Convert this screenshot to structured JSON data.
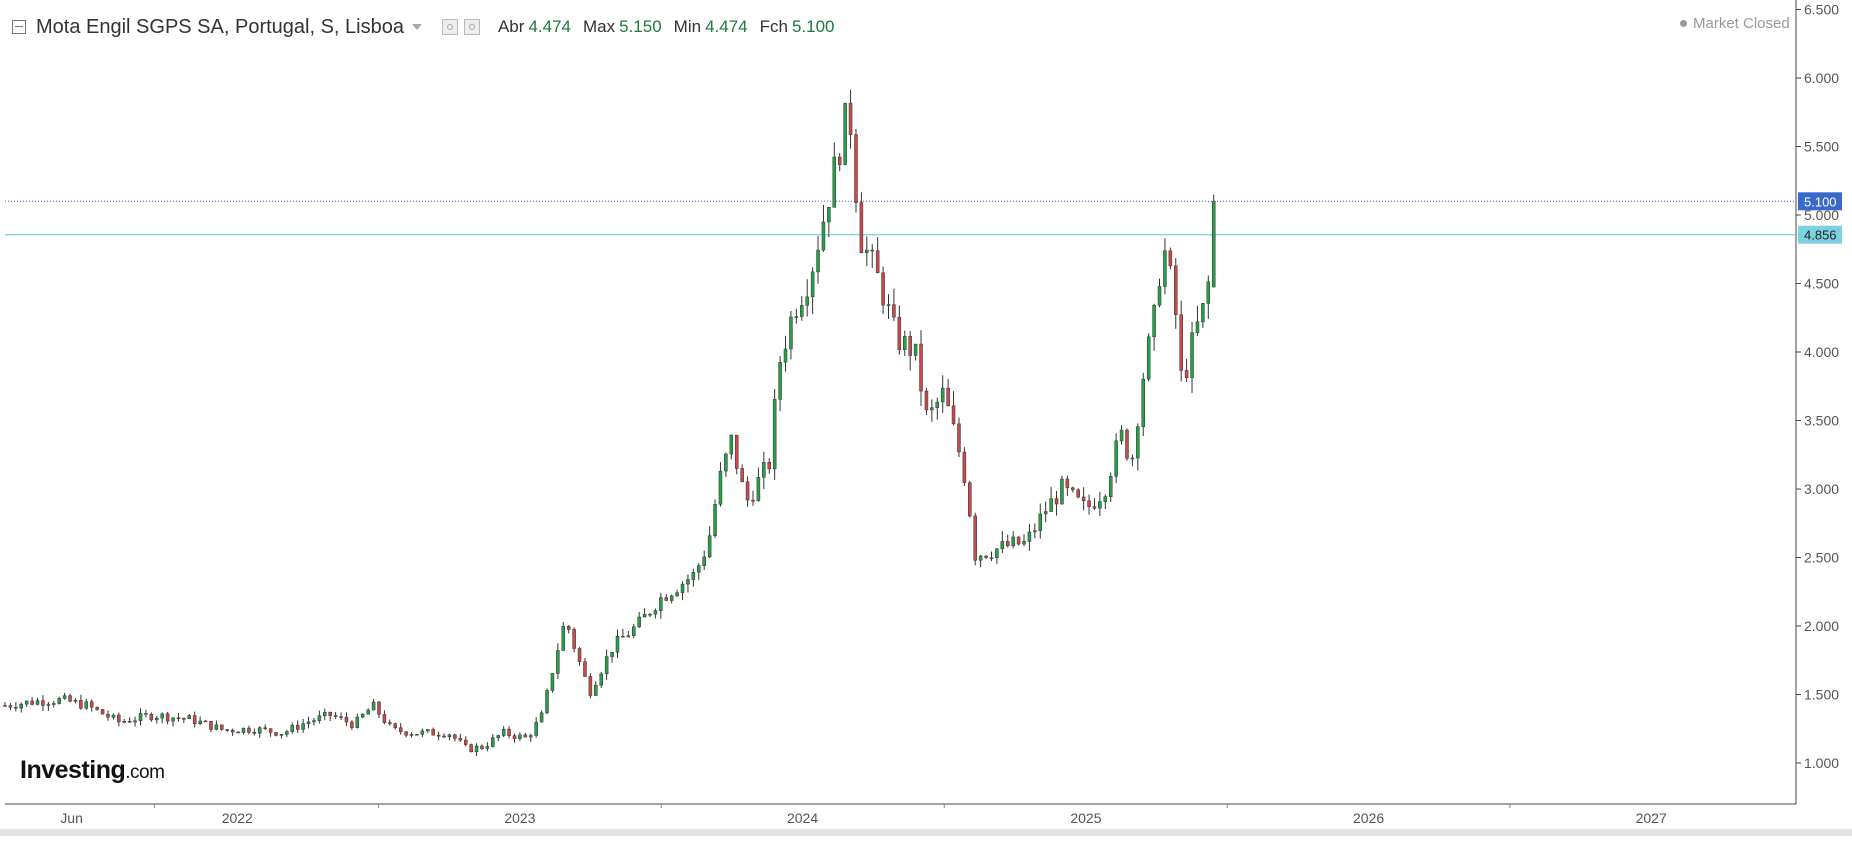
{
  "header": {
    "title": "Mota Engil SGPS SA, Portugal, S, Lisboa",
    "ohlc": [
      {
        "label": "Abr",
        "value": "4.474"
      },
      {
        "label": "Max",
        "value": "5.150"
      },
      {
        "label": "Min",
        "value": "4.474"
      },
      {
        "label": "Fch",
        "value": "5.100"
      }
    ]
  },
  "status": {
    "label": "Market Closed"
  },
  "logo": {
    "main": "Investing",
    "suffix": ".com"
  },
  "colors": {
    "up": "#26a046",
    "down": "#c84a4a",
    "price_line": "#3a6ac8",
    "level_line": "#7dd2e2",
    "grid": "#e8e8e8",
    "axis_text": "#555555"
  },
  "chart_data": {
    "type": "candlestick",
    "ylim": [
      0.75,
      6.5
    ],
    "y_ticks": [
      "1.000",
      "1.500",
      "2.000",
      "2.500",
      "3.000",
      "3.500",
      "4.000",
      "4.500",
      "5.000",
      "5.500",
      "6.000",
      "6.500"
    ],
    "x_ticks": [
      {
        "label": "Jun",
        "date": "2021-06-01"
      },
      {
        "label": "2022",
        "date": "2022-01-01"
      },
      {
        "label": "2023",
        "date": "2023-01-01"
      },
      {
        "label": "2024",
        "date": "2024-01-01"
      },
      {
        "label": "2025",
        "date": "2025-01-01"
      },
      {
        "label": "2026",
        "date": "2026-01-01"
      },
      {
        "label": "2027",
        "date": "2027-01-01"
      }
    ],
    "xlim": [
      "2021-03-07",
      "2027-07-07"
    ],
    "current_price": {
      "label": "5.100",
      "value": 5.1
    },
    "horizontal_level": {
      "label": "4.856",
      "value": 4.856
    },
    "key_points": [
      [
        "2021-03-07",
        1.42
      ],
      [
        "2021-04-15",
        1.45
      ],
      [
        "2021-05-20",
        1.46
      ],
      [
        "2021-06-20",
        1.42
      ],
      [
        "2021-08-01",
        1.3
      ],
      [
        "2021-09-15",
        1.35
      ],
      [
        "2021-11-01",
        1.32
      ],
      [
        "2021-12-15",
        1.24
      ],
      [
        "2022-01-20",
        1.25
      ],
      [
        "2022-03-01",
        1.22
      ],
      [
        "2022-04-01",
        1.3
      ],
      [
        "2022-05-01",
        1.35
      ],
      [
        "2022-06-01",
        1.28
      ],
      [
        "2022-06-25",
        1.42
      ],
      [
        "2022-07-20",
        1.24
      ],
      [
        "2022-08-20",
        1.22
      ],
      [
        "2022-10-01",
        1.22
      ],
      [
        "2022-10-25",
        1.1
      ],
      [
        "2022-11-15",
        1.12
      ],
      [
        "2022-12-10",
        1.22
      ],
      [
        "2023-01-10",
        1.18
      ],
      [
        "2023-01-30",
        1.35
      ],
      [
        "2023-02-15",
        1.75
      ],
      [
        "2023-03-01",
        2.05
      ],
      [
        "2023-03-15",
        1.8
      ],
      [
        "2023-04-01",
        1.52
      ],
      [
        "2023-05-01",
        1.85
      ],
      [
        "2023-06-01",
        2.0
      ],
      [
        "2023-07-01",
        2.2
      ],
      [
        "2023-08-15",
        2.38
      ],
      [
        "2023-09-01",
        2.6
      ],
      [
        "2023-09-15",
        3.05
      ],
      [
        "2023-10-01",
        3.35
      ],
      [
        "2023-10-20",
        2.9
      ],
      [
        "2023-11-20",
        3.2
      ],
      [
        "2023-12-01",
        3.9
      ],
      [
        "2023-12-20",
        4.3
      ],
      [
        "2024-01-10",
        4.55
      ],
      [
        "2024-01-25",
        4.9
      ],
      [
        "2024-02-10",
        5.3
      ],
      [
        "2024-03-01",
        5.8
      ],
      [
        "2024-03-15",
        4.85
      ],
      [
        "2024-04-10",
        4.5
      ],
      [
        "2024-05-01",
        4.1
      ],
      [
        "2024-05-25",
        4.0
      ],
      [
        "2024-06-10",
        3.5
      ],
      [
        "2024-07-01",
        3.7
      ],
      [
        "2024-07-20",
        3.3
      ],
      [
        "2024-08-01",
        3.0
      ],
      [
        "2024-08-10",
        2.52
      ],
      [
        "2024-09-01",
        2.55
      ],
      [
        "2024-10-01",
        2.6
      ],
      [
        "2024-10-15",
        2.6
      ],
      [
        "2024-11-10",
        2.85
      ],
      [
        "2024-12-01",
        3.0
      ],
      [
        "2025-01-01",
        2.85
      ],
      [
        "2025-01-25",
        3.0
      ],
      [
        "2025-02-15",
        3.4
      ],
      [
        "2025-03-01",
        3.2
      ],
      [
        "2025-03-15",
        3.8
      ],
      [
        "2025-04-01",
        4.3
      ],
      [
        "2025-04-10",
        4.8
      ],
      [
        "2025-04-25",
        4.4
      ],
      [
        "2025-05-05",
        3.75
      ],
      [
        "2025-05-20",
        4.1
      ],
      [
        "2025-06-01",
        4.3
      ],
      [
        "2025-06-10",
        4.55
      ],
      [
        "2025-06-20",
        5.1
      ]
    ]
  }
}
